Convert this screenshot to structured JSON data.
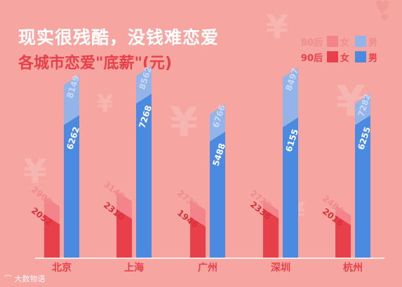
{
  "title": "现实很残酷，没钱难恋爱",
  "subtitle": "各城市恋爱\"底薪\"(元)",
  "legend": {
    "rows": [
      {
        "group": "80后",
        "female": "女",
        "male": "男",
        "female_color": "#f3848c",
        "male_color": "#93b4e9",
        "text_color": "#ef8d92"
      },
      {
        "group": "90后",
        "female": "女",
        "male": "男",
        "female_color": "#e8404a",
        "male_color": "#4a8ae0",
        "text_color": "#e8404a"
      }
    ]
  },
  "watermark": "大数物语",
  "colors": {
    "background": "#f6a5a0",
    "female_90": "#e8404a",
    "female_80": "#f3848c",
    "male_90": "#4a8ae0",
    "male_80": "#93b4e9",
    "decor_yen": "#f7b7b2",
    "decor_heart": "#f29b96"
  },
  "chart_data": {
    "type": "bar",
    "categories": [
      "北京",
      "上海",
      "广州",
      "深圳",
      "杭州"
    ],
    "series": [
      {
        "name": "80后 女",
        "values": [
          2900,
          3148,
          2739,
          2727,
          2484
        ]
      },
      {
        "name": "90后 女",
        "values": [
          2052,
          2310,
          1946,
          2338,
          2016
        ]
      },
      {
        "name": "80后 男",
        "values": [
          8149,
          8562,
          6766,
          8497,
          7282
        ]
      },
      {
        "name": "90后 男",
        "values": [
          6262,
          7268,
          5488,
          6155,
          6255
        ]
      }
    ],
    "ylim": [
      0,
      9500
    ],
    "grid": false,
    "legend_position": "top-right"
  }
}
